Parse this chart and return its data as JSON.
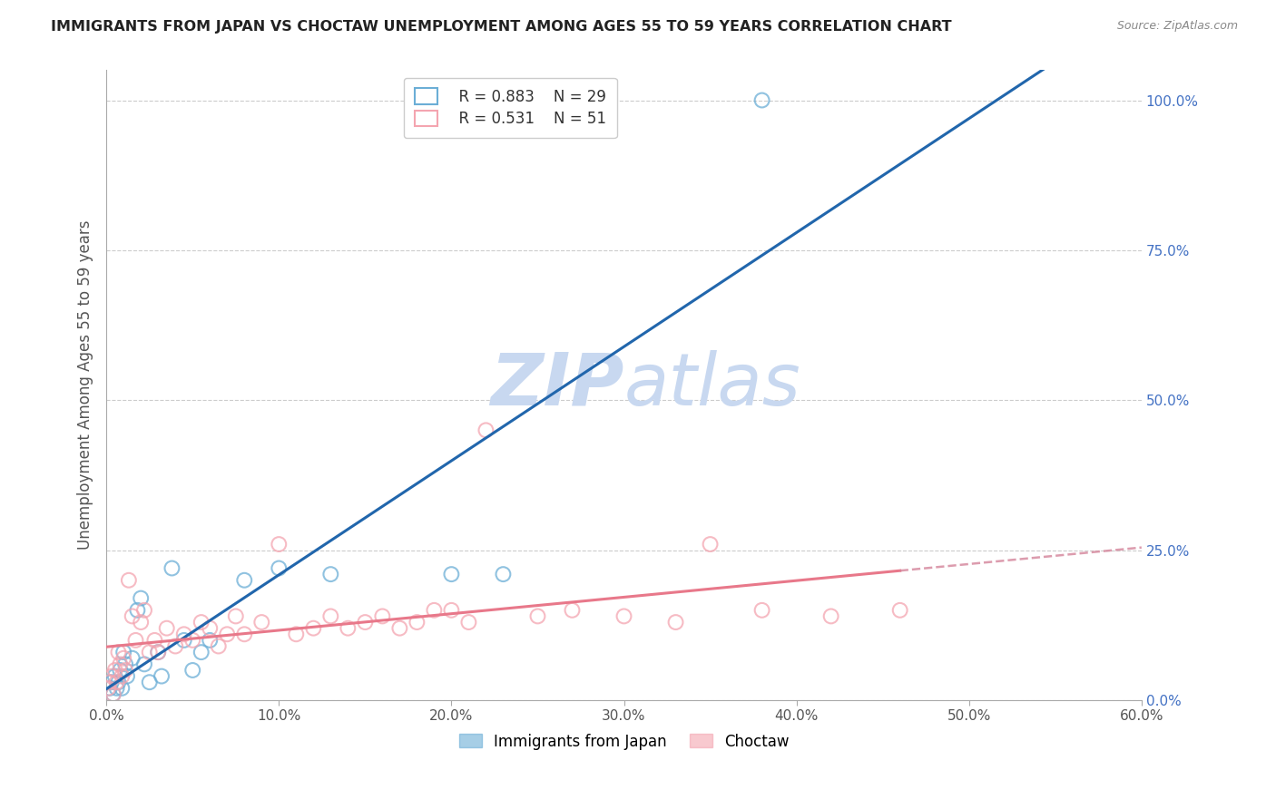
{
  "title": "IMMIGRANTS FROM JAPAN VS CHOCTAW UNEMPLOYMENT AMONG AGES 55 TO 59 YEARS CORRELATION CHART",
  "source": "Source: ZipAtlas.com",
  "ylabel": "Unemployment Among Ages 55 to 59 years",
  "xlim": [
    0.0,
    0.6
  ],
  "ylim": [
    0.0,
    1.05
  ],
  "x_ticks": [
    0.0,
    0.1,
    0.2,
    0.3,
    0.4,
    0.5,
    0.6
  ],
  "x_tick_labels": [
    "0.0%",
    "10.0%",
    "20.0%",
    "30.0%",
    "40.0%",
    "50.0%",
    "60.0%"
  ],
  "y_ticks_right": [
    0.0,
    0.25,
    0.5,
    0.75,
    1.0
  ],
  "y_tick_labels_right": [
    "0.0%",
    "25.0%",
    "50.0%",
    "75.0%",
    "100.0%"
  ],
  "right_tick_color": "#4472c4",
  "legend_r1": "R = 0.883",
  "legend_n1": "N = 29",
  "legend_r2": "R = 0.531",
  "legend_n2": "N = 51",
  "color_japan": "#6baed6",
  "color_choctaw": "#f4a5b0",
  "line_color_japan": "#2166ac",
  "line_color_choctaw": "#e8788a",
  "line_color_choctaw_dashed": "#d4849a",
  "watermark_zip": "ZIP",
  "watermark_atlas": "atlas",
  "watermark_color": "#c8d8f0",
  "japan_x": [
    0.002,
    0.003,
    0.004,
    0.005,
    0.006,
    0.007,
    0.008,
    0.009,
    0.01,
    0.011,
    0.012,
    0.015,
    0.018,
    0.02,
    0.022,
    0.025,
    0.03,
    0.032,
    0.038,
    0.045,
    0.05,
    0.055,
    0.06,
    0.08,
    0.1,
    0.13,
    0.2,
    0.23,
    0.38
  ],
  "japan_y": [
    0.02,
    0.03,
    0.01,
    0.04,
    0.02,
    0.03,
    0.05,
    0.02,
    0.08,
    0.06,
    0.04,
    0.07,
    0.15,
    0.17,
    0.06,
    0.03,
    0.08,
    0.04,
    0.22,
    0.1,
    0.05,
    0.08,
    0.1,
    0.2,
    0.22,
    0.21,
    0.21,
    0.21,
    1.0
  ],
  "choctaw_x": [
    0.001,
    0.002,
    0.003,
    0.004,
    0.005,
    0.006,
    0.007,
    0.008,
    0.009,
    0.01,
    0.011,
    0.013,
    0.015,
    0.017,
    0.02,
    0.022,
    0.025,
    0.028,
    0.03,
    0.035,
    0.04,
    0.045,
    0.05,
    0.055,
    0.06,
    0.065,
    0.07,
    0.075,
    0.08,
    0.09,
    0.1,
    0.11,
    0.12,
    0.13,
    0.14,
    0.15,
    0.16,
    0.17,
    0.18,
    0.19,
    0.2,
    0.21,
    0.22,
    0.25,
    0.27,
    0.3,
    0.33,
    0.35,
    0.38,
    0.42,
    0.46
  ],
  "choctaw_y": [
    0.02,
    0.03,
    0.04,
    0.01,
    0.05,
    0.03,
    0.08,
    0.06,
    0.04,
    0.07,
    0.05,
    0.2,
    0.14,
    0.1,
    0.13,
    0.15,
    0.08,
    0.1,
    0.08,
    0.12,
    0.09,
    0.11,
    0.1,
    0.13,
    0.12,
    0.09,
    0.11,
    0.14,
    0.11,
    0.13,
    0.26,
    0.11,
    0.12,
    0.14,
    0.12,
    0.13,
    0.14,
    0.12,
    0.13,
    0.15,
    0.15,
    0.13,
    0.45,
    0.14,
    0.15,
    0.14,
    0.13,
    0.26,
    0.15,
    0.14,
    0.15
  ]
}
